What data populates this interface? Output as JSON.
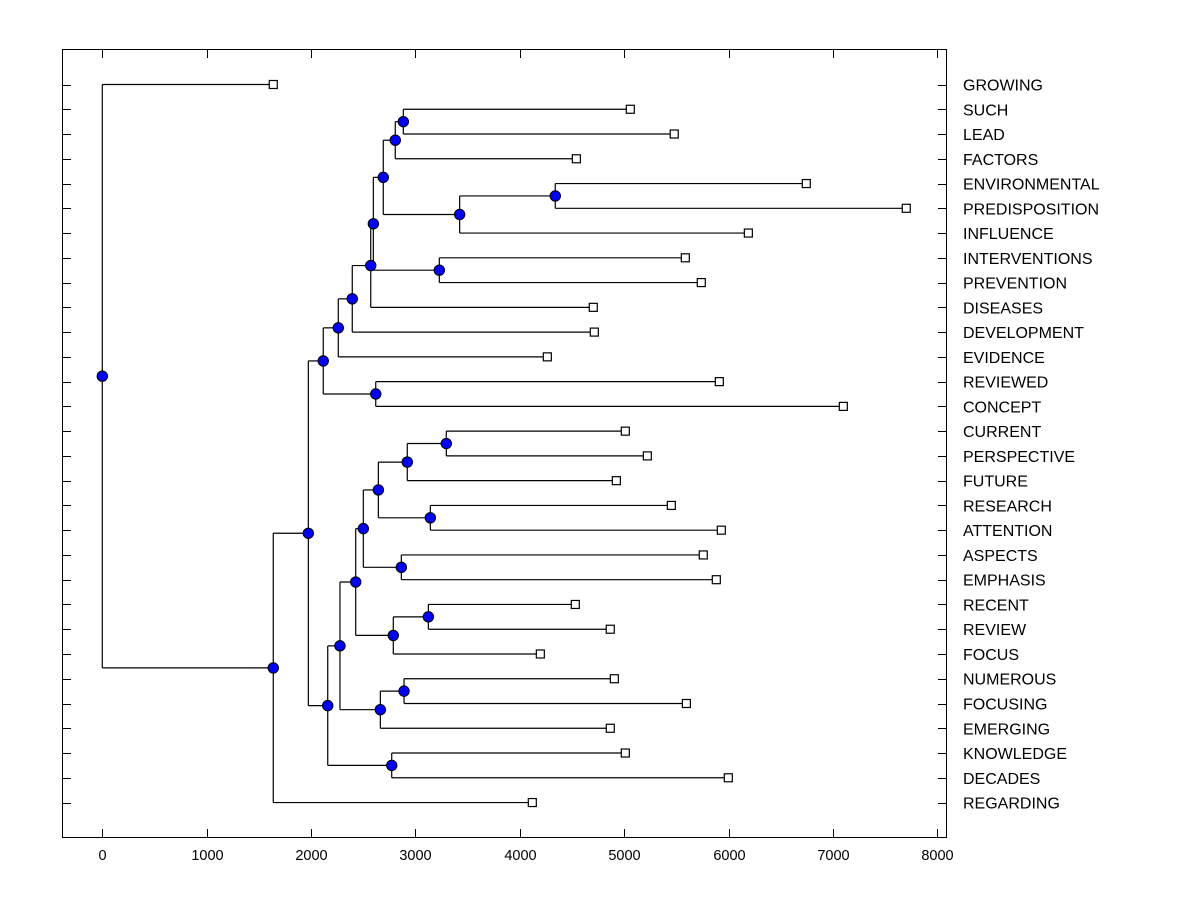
{
  "chart_data": {
    "type": "dendrogram",
    "orientation": "horizontal",
    "xlabel": "",
    "ylabel": "",
    "xlim": [
      -380,
      8120
    ],
    "x_ticks": [
      0,
      1000,
      2000,
      3000,
      4000,
      5000,
      6000,
      7000,
      8000
    ],
    "grid": false,
    "colors": {
      "node_fill": "#0000FF",
      "leaf_fill": "#FFFFFF",
      "line": "#000000"
    },
    "tree": {
      "height": 0,
      "children": [
        {
          "label": "GROWING",
          "height": 1638
        },
        {
          "height": 1638,
          "children": [
            {
              "height": 1974,
              "children": [
                {
                  "height": 2117,
                  "children": [
                    {
                      "height": 2261,
                      "children": [
                        {
                          "height": 2395,
                          "children": [
                            {
                              "height": 2572,
                              "children": [
                                {
                                  "height": 2597,
                                  "children": [
                                    {
                                      "height": 2692,
                                      "children": [
                                        {
                                          "height": 2807,
                                          "children": [
                                            {
                                              "height": 2884,
                                              "children": [
                                                {
                                                  "label": "SUCH",
                                                  "height": 5059
                                                },
                                                {
                                                  "label": "LEAD",
                                                  "height": 5480
                                                }
                                              ]
                                            },
                                            {
                                              "label": "FACTORS",
                                              "height": 4542
                                            }
                                          ]
                                        },
                                        {
                                          "height": 3424,
                                          "children": [
                                            {
                                              "height": 4340,
                                              "children": [
                                                {
                                                  "label": "ENVIRONMENTAL",
                                                  "height": 6745
                                                },
                                                {
                                                  "label": "PREDISPOSITION",
                                                  "height": 7703
                                                }
                                              ]
                                            },
                                            {
                                              "label": "INFLUENCE",
                                              "height": 6190
                                            }
                                          ]
                                        }
                                      ]
                                    },
                                    {
                                      "height": 3229,
                                      "children": [
                                        {
                                          "label": "INTERVENTIONS",
                                          "height": 5586
                                        },
                                        {
                                          "label": "PREVENTION",
                                          "height": 5739
                                        }
                                      ]
                                    }
                                  ]
                                },
                                {
                                  "label": "DISEASES",
                                  "height": 4704
                                }
                              ]
                            },
                            {
                              "label": "DEVELOPMENT",
                              "height": 4714
                            }
                          ]
                        },
                        {
                          "label": "EVIDENCE",
                          "height": 4264
                        }
                      ]
                    },
                    {
                      "height": 2620,
                      "children": [
                        {
                          "label": "REVIEWED",
                          "height": 5912
                        },
                        {
                          "label": "CONCEPT",
                          "height": 7100
                        }
                      ]
                    }
                  ]
                },
                {
                  "height": 2160,
                  "children": [
                    {
                      "height": 2277,
                      "children": [
                        {
                          "height": 2428,
                          "children": [
                            {
                              "height": 2501,
                              "children": [
                                {
                                  "height": 2645,
                                  "children": [
                                    {
                                      "height": 2922,
                                      "children": [
                                        {
                                          "height": 3296,
                                          "children": [
                                            {
                                              "label": "CURRENT",
                                              "height": 5011
                                            },
                                            {
                                              "label": "PERSPECTIVE",
                                              "height": 5222
                                            }
                                          ]
                                        },
                                        {
                                          "label": "FUTURE",
                                          "height": 4925
                                        }
                                      ]
                                    },
                                    {
                                      "height": 3143,
                                      "children": [
                                        {
                                          "label": "RESEARCH",
                                          "height": 5452
                                        },
                                        {
                                          "label": "ATTENTION",
                                          "height": 5931
                                        }
                                      ]
                                    }
                                  ]
                                },
                                {
                                  "height": 2865,
                                  "children": [
                                    {
                                      "label": "ASPECTS",
                                      "height": 5758
                                    },
                                    {
                                      "label": "EMPHASIS",
                                      "height": 5883
                                    }
                                  ]
                                }
                              ]
                            },
                            {
                              "height": 2788,
                              "children": [
                                {
                                  "height": 3124,
                                  "children": [
                                    {
                                      "label": "RECENT",
                                      "height": 4532
                                    },
                                    {
                                      "label": "REVIEW",
                                      "height": 4867
                                    }
                                  ]
                                },
                                {
                                  "label": "FOCUS",
                                  "height": 4197
                                }
                              ]
                            }
                          ]
                        },
                        {
                          "height": 2664,
                          "children": [
                            {
                              "height": 2891,
                              "children": [
                                {
                                  "label": "NUMEROUS",
                                  "height": 4906
                                },
                                {
                                  "label": "FOCUSING",
                                  "height": 5596
                                }
                              ]
                            },
                            {
                              "label": "EMERGING",
                              "height": 4867
                            }
                          ]
                        }
                      ]
                    },
                    {
                      "height": 2773,
                      "children": [
                        {
                          "label": "KNOWLEDGE",
                          "height": 5011
                        },
                        {
                          "label": "DECADES",
                          "height": 5998
                        }
                      ]
                    }
                  ]
                }
              ]
            },
            {
              "label": "REGARDING",
              "height": 4120
            }
          ]
        }
      ]
    }
  }
}
